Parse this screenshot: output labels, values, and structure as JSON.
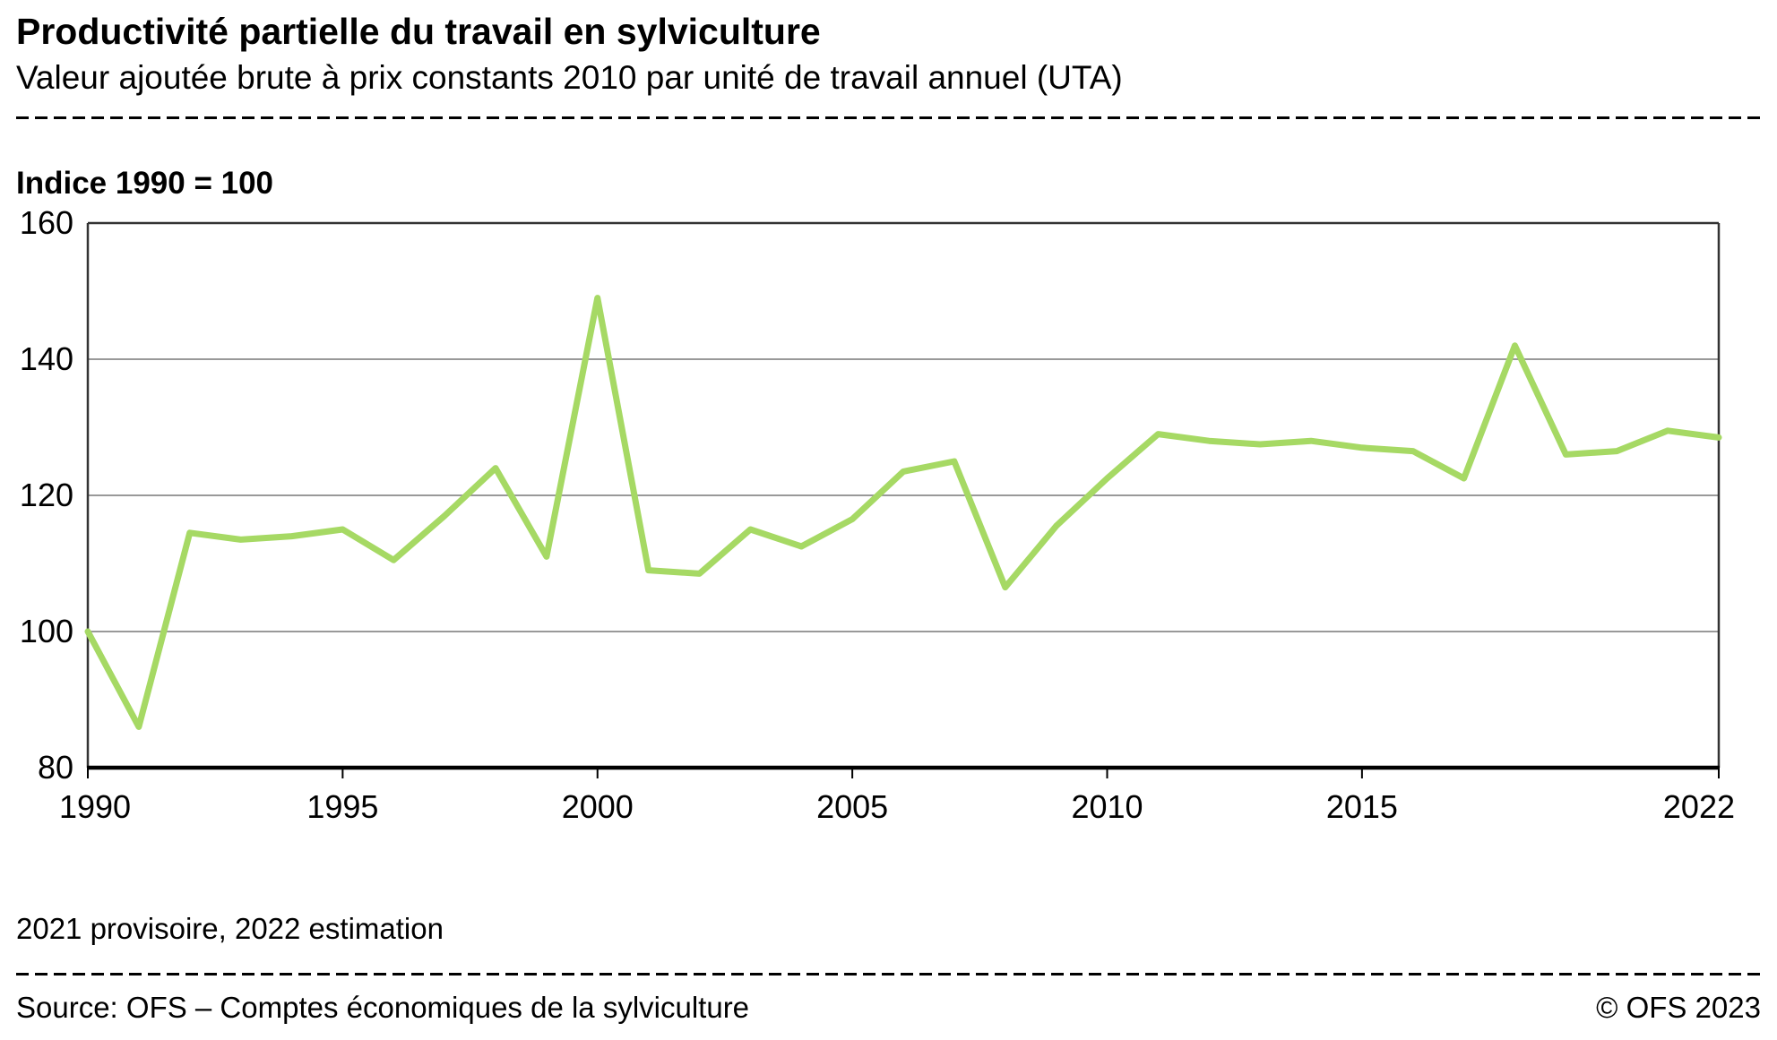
{
  "header": {
    "title": "Productivité partielle du travail en sylviculture",
    "subtitle": "Valeur ajoutée brute à prix constants 2010 par unité de travail annuel (UTA)"
  },
  "chart_data": {
    "type": "line",
    "index_label": "Indice 1990 = 100",
    "x": [
      1990,
      1991,
      1992,
      1993,
      1994,
      1995,
      1996,
      1997,
      1998,
      1999,
      2000,
      2001,
      2002,
      2003,
      2004,
      2005,
      2006,
      2007,
      2008,
      2009,
      2010,
      2011,
      2012,
      2013,
      2014,
      2015,
      2016,
      2017,
      2018,
      2019,
      2020,
      2021,
      2022
    ],
    "series": [
      {
        "name": "Valeur ajoutée brute à prix constants 2010 par UTA (indice 1990 = 100)",
        "values": [
          100,
          86,
          114.5,
          113.5,
          114,
          115,
          110.5,
          117,
          124,
          111,
          149,
          109,
          108.5,
          115,
          112.5,
          116.5,
          123.5,
          125,
          106.5,
          115.5,
          122.5,
          129,
          128,
          127.5,
          128,
          127,
          126.5,
          122.5,
          142,
          126,
          126.5,
          129.5,
          128.5
        ]
      }
    ],
    "xlim": [
      1990,
      2022
    ],
    "ylim": [
      80,
      160
    ],
    "yticks": [
      80,
      100,
      120,
      140,
      160
    ],
    "xticks": [
      1990,
      1995,
      2000,
      2005,
      2010,
      2015,
      2022
    ],
    "grid": true,
    "legend_position": "none",
    "colors": {
      "line": "#a6d964",
      "grid": "#999999",
      "frame": "#333333",
      "axis": "#000000",
      "text": "#000000"
    }
  },
  "footnote": "2021 provisoire, 2022 estimation",
  "footer": {
    "source": "Source: OFS – Comptes économiques de la sylviculture",
    "copyright": "© OFS 2023"
  }
}
